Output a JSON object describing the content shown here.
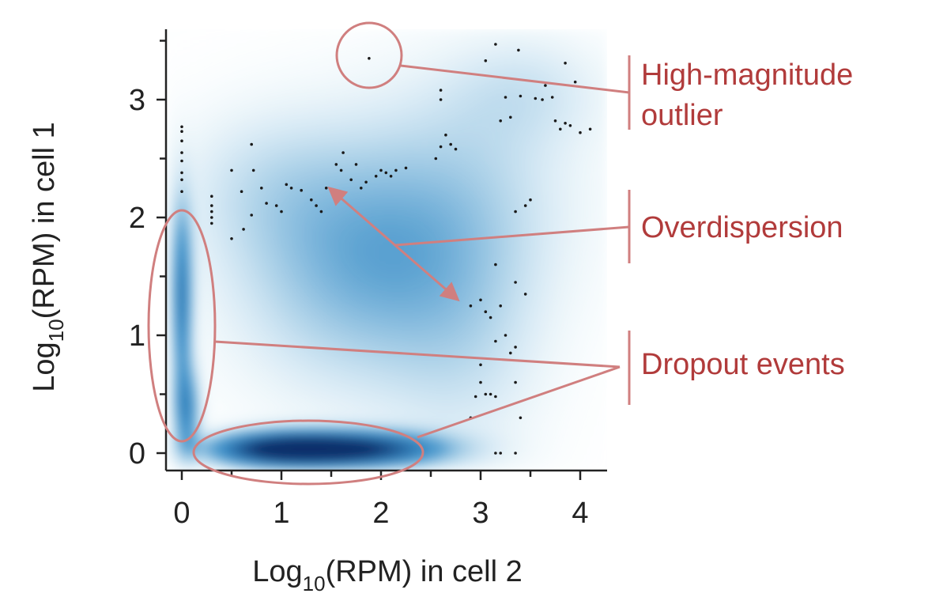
{
  "chart_data": {
    "type": "scatter",
    "xlabel": {
      "prefix": "Log",
      "sub": "10",
      "suffix": "(RPM) in cell 2"
    },
    "ylabel": {
      "prefix": "Log",
      "sub": "10",
      "suffix": "(RPM) in cell 1"
    },
    "xlim": [
      -0.15,
      4.25
    ],
    "ylim": [
      -0.15,
      3.6
    ],
    "xticks": [
      0,
      1,
      2,
      3,
      4
    ],
    "yticks": [
      0,
      1,
      2,
      3
    ],
    "x_tick_labels": [
      "0",
      "1",
      "2",
      "3",
      "4"
    ],
    "y_tick_labels": [
      "0",
      "1",
      "2",
      "3"
    ],
    "grid": false,
    "density": {
      "colormap": "blues",
      "colors": {
        "light": "#bfe0f0",
        "mid": "#3d8fc8",
        "dark": "#0a2f6b"
      },
      "regions": [
        {
          "x": 0.0,
          "y": 1.3,
          "sx": 0.07,
          "sy": 0.55,
          "w": 0.55
        },
        {
          "x": 0.05,
          "y": 0.35,
          "sx": 0.09,
          "sy": 0.25,
          "w": 0.45
        },
        {
          "x": 1.6,
          "y": 0.02,
          "sx": 0.65,
          "sy": 0.1,
          "w": 1.0
        },
        {
          "x": 0.9,
          "y": 0.02,
          "sx": 0.45,
          "sy": 0.1,
          "w": 0.55
        },
        {
          "x": 1.7,
          "y": 1.5,
          "sx": 0.9,
          "sy": 0.75,
          "w": 0.28
        },
        {
          "x": 2.8,
          "y": 2.2,
          "sx": 0.9,
          "sy": 0.75,
          "w": 0.18
        },
        {
          "x": 0.8,
          "y": 2.3,
          "sx": 0.7,
          "sy": 0.5,
          "w": 0.12
        },
        {
          "x": 2.9,
          "y": 0.8,
          "sx": 0.6,
          "sy": 0.8,
          "w": 0.12
        },
        {
          "x": 3.5,
          "y": 3.1,
          "sx": 0.6,
          "sy": 0.35,
          "w": 0.12
        }
      ]
    },
    "points": [
      [
        1.88,
        3.35
      ],
      [
        3.15,
        3.47
      ],
      [
        3.38,
        3.42
      ],
      [
        3.05,
        3.33
      ],
      [
        3.85,
        3.31
      ],
      [
        3.95,
        3.15
      ],
      [
        3.65,
        3.12
      ],
      [
        2.6,
        3.08
      ],
      [
        2.6,
        3.0
      ],
      [
        3.25,
        3.02
      ],
      [
        3.4,
        3.03
      ],
      [
        3.55,
        3.01
      ],
      [
        3.62,
        3.0
      ],
      [
        3.72,
        3.02
      ],
      [
        3.2,
        2.82
      ],
      [
        3.3,
        2.85
      ],
      [
        3.75,
        2.82
      ],
      [
        3.85,
        2.8
      ],
      [
        3.9,
        2.78
      ],
      [
        3.8,
        2.75
      ],
      [
        4.0,
        2.72
      ],
      [
        4.1,
        2.75
      ],
      [
        2.65,
        2.7
      ],
      [
        2.7,
        2.62
      ],
      [
        2.75,
        2.58
      ],
      [
        0.0,
        2.77
      ],
      [
        0.0,
        2.73
      ],
      [
        0.0,
        2.65
      ],
      [
        0.0,
        2.55
      ],
      [
        0.0,
        2.48
      ],
      [
        0.0,
        2.38
      ],
      [
        0.0,
        2.32
      ],
      [
        0.0,
        2.22
      ],
      [
        0.3,
        2.18
      ],
      [
        0.3,
        2.1
      ],
      [
        0.3,
        2.05
      ],
      [
        0.3,
        2.0
      ],
      [
        0.3,
        1.95
      ],
      [
        0.5,
        2.4
      ],
      [
        0.6,
        2.22
      ],
      [
        0.7,
        2.62
      ],
      [
        0.72,
        2.4
      ],
      [
        0.8,
        2.25
      ],
      [
        0.85,
        2.12
      ],
      [
        0.95,
        2.1
      ],
      [
        1.0,
        2.05
      ],
      [
        1.05,
        2.28
      ],
      [
        1.1,
        2.25
      ],
      [
        1.2,
        2.23
      ],
      [
        1.3,
        2.15
      ],
      [
        1.35,
        2.1
      ],
      [
        1.4,
        2.05
      ],
      [
        1.45,
        2.25
      ],
      [
        0.5,
        1.82
      ],
      [
        0.62,
        1.9
      ],
      [
        0.7,
        2.02
      ],
      [
        1.55,
        2.45
      ],
      [
        1.6,
        2.4
      ],
      [
        1.62,
        2.55
      ],
      [
        1.7,
        2.32
      ],
      [
        1.75,
        2.45
      ],
      [
        1.8,
        2.25
      ],
      [
        1.85,
        2.3
      ],
      [
        1.95,
        2.35
      ],
      [
        2.0,
        2.4
      ],
      [
        2.05,
        2.38
      ],
      [
        2.1,
        2.35
      ],
      [
        2.15,
        2.4
      ],
      [
        2.25,
        2.42
      ],
      [
        2.55,
        2.5
      ],
      [
        2.6,
        2.6
      ],
      [
        3.35,
        2.05
      ],
      [
        3.45,
        2.1
      ],
      [
        3.5,
        2.15
      ],
      [
        3.15,
        1.6
      ],
      [
        3.35,
        1.45
      ],
      [
        3.45,
        1.35
      ],
      [
        2.9,
        1.25
      ],
      [
        3.0,
        1.3
      ],
      [
        3.05,
        1.2
      ],
      [
        3.1,
        1.15
      ],
      [
        3.2,
        1.25
      ],
      [
        3.15,
        0.95
      ],
      [
        3.25,
        1.0
      ],
      [
        3.35,
        0.9
      ],
      [
        3.3,
        0.85
      ],
      [
        3.0,
        0.75
      ],
      [
        3.0,
        0.6
      ],
      [
        3.05,
        0.5
      ],
      [
        3.1,
        0.5
      ],
      [
        3.15,
        0.48
      ],
      [
        2.95,
        0.48
      ],
      [
        2.9,
        0.3
      ],
      [
        3.4,
        0.3
      ],
      [
        3.35,
        0.6
      ],
      [
        3.15,
        0.0
      ],
      [
        3.2,
        0.0
      ],
      [
        3.35,
        0.0
      ]
    ],
    "annotations": [
      {
        "text": [
          "High-magnitude",
          "outlier"
        ]
      },
      {
        "text": [
          "Overdispersion"
        ]
      },
      {
        "text": [
          "Dropout events"
        ]
      }
    ],
    "annotation_color": "#b13b3b",
    "shape_color": "#d07f7f"
  }
}
